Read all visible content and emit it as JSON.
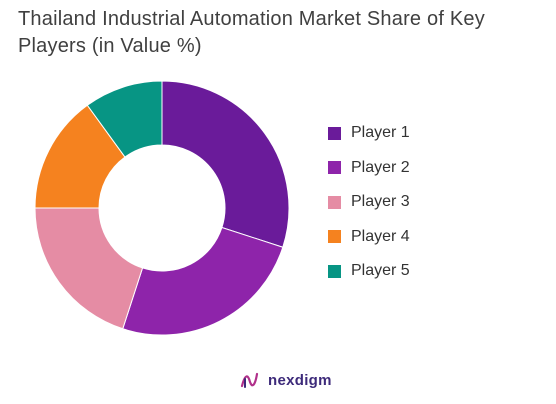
{
  "chart_data": {
    "type": "pie",
    "title": "Thailand Industrial Automation Market Share of Key Players (in Value %)",
    "categories": [
      "Player 1",
      "Player 2",
      "Player 3",
      "Player 4",
      "Player 5"
    ],
    "values": [
      30,
      25,
      20,
      15,
      10
    ],
    "colors": [
      "#6a1b9a",
      "#8e24aa",
      "#e58ca4",
      "#f5821f",
      "#079584"
    ],
    "donut": true,
    "legend_position": "right"
  },
  "brand": {
    "name": "nexdigm",
    "icon": "nexdigm-logo-icon",
    "color": "#3d2a7a"
  }
}
